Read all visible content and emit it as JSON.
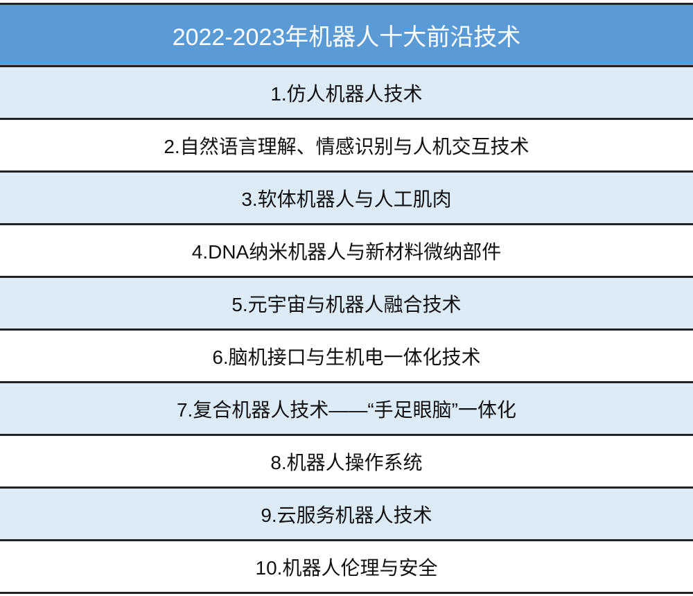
{
  "title": "2022-2023年机器人十大前沿技术",
  "items": [
    "1.仿人机器人技术",
    "2.自然语言理解、情感识别与人机交互技术",
    "3.软体机器人与人工肌肉",
    "4.DNA纳米机器人与新材料微纳部件",
    "5.元宇宙与机器人融合技术",
    "6.脑机接口与生机电一体化技术",
    "7.复合机器人技术——“手足眼脑”一体化",
    "8.机器人操作系统",
    "9.云服务机器人技术",
    "10.机器人伦理与安全"
  ],
  "colors": {
    "header": "#5b9bd5",
    "band": "#ddebf7"
  }
}
